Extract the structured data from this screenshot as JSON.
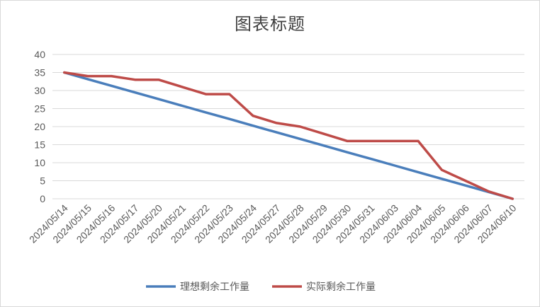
{
  "chart_data": {
    "type": "line",
    "title": "图表标题",
    "xlabel": "",
    "ylabel": "",
    "ylim": [
      0,
      40
    ],
    "yticks": [
      0,
      5,
      10,
      15,
      20,
      25,
      30,
      35,
      40
    ],
    "grid": true,
    "legend_position": "bottom",
    "categories": [
      "2024/05/14",
      "2024/05/15",
      "2024/05/16",
      "2024/05/17",
      "2024/05/20",
      "2024/05/21",
      "2024/05/22",
      "2024/05/23",
      "2024/05/24",
      "2024/05/27",
      "2024/05/28",
      "2024/05/29",
      "2024/05/30",
      "2024/05/31",
      "2024/06/03",
      "2024/06/04",
      "2024/06/05",
      "2024/06/06",
      "2024/06/07",
      "2024/06/10"
    ],
    "series": [
      {
        "name": "理想剩余工作量",
        "color": "#4a7ebb",
        "values": [
          35,
          33.16,
          31.32,
          29.47,
          27.63,
          25.79,
          23.95,
          22.11,
          20.26,
          18.42,
          16.58,
          14.74,
          12.89,
          11.05,
          9.21,
          7.37,
          5.53,
          3.68,
          1.84,
          0
        ]
      },
      {
        "name": "实际剩余工作量",
        "color": "#be4b48",
        "values": [
          35,
          34,
          34,
          33,
          33,
          31,
          29,
          29,
          23,
          21,
          20,
          18,
          16,
          16,
          16,
          16,
          8,
          5,
          2,
          0
        ]
      }
    ]
  }
}
